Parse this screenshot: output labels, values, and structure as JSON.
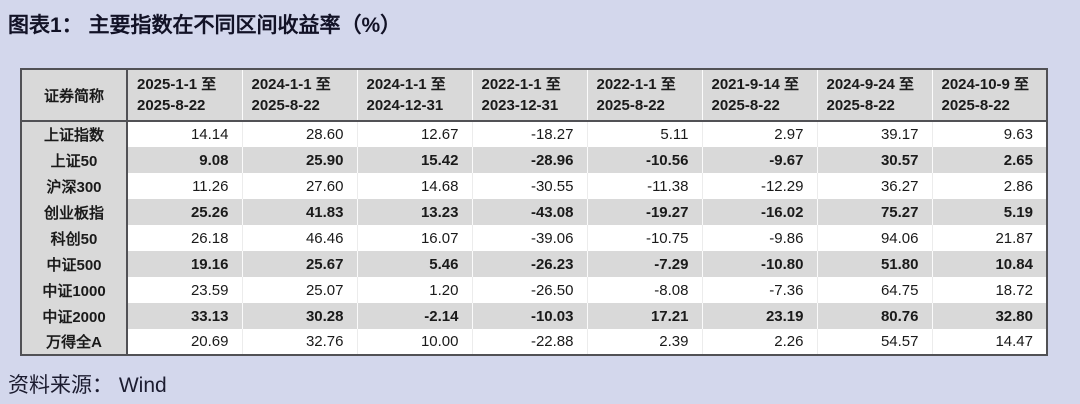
{
  "title": "图表1： 主要指数在不同区间收益率（%）",
  "source": "资料来源： Wind",
  "colors": {
    "page_background": "#d3d7ec",
    "stripe_and_header_gray": "#d9d9d9",
    "table_border_dark": "#515155",
    "text": "#1a1a1a"
  },
  "table": {
    "index_header": "证券简称",
    "columns": [
      {
        "line1": "2025-1-1 至",
        "line2": "2025-8-22"
      },
      {
        "line1": "2024-1-1 至",
        "line2": "2025-8-22"
      },
      {
        "line1": "2024-1-1 至",
        "line2": "2024-12-31"
      },
      {
        "line1": "2022-1-1 至",
        "line2": "2023-12-31"
      },
      {
        "line1": "2022-1-1 至",
        "line2": "2025-8-22"
      },
      {
        "line1": "2021-9-14 至",
        "line2": "2025-8-22"
      },
      {
        "line1": "2024-9-24 至",
        "line2": "2025-8-22"
      },
      {
        "line1": "2024-10-9 至",
        "line2": "2025-8-22"
      }
    ],
    "rows": [
      {
        "label": "上证指数",
        "values": [
          "14.14",
          "28.60",
          "12.67",
          "-18.27",
          "5.11",
          "2.97",
          "39.17",
          "9.63"
        ]
      },
      {
        "label": "上证50",
        "values": [
          "9.08",
          "25.90",
          "15.42",
          "-28.96",
          "-10.56",
          "-9.67",
          "30.57",
          "2.65"
        ]
      },
      {
        "label": "沪深300",
        "values": [
          "11.26",
          "27.60",
          "14.68",
          "-30.55",
          "-11.38",
          "-12.29",
          "36.27",
          "2.86"
        ]
      },
      {
        "label": "创业板指",
        "values": [
          "25.26",
          "41.83",
          "13.23",
          "-43.08",
          "-19.27",
          "-16.02",
          "75.27",
          "5.19"
        ]
      },
      {
        "label": "科创50",
        "values": [
          "26.18",
          "46.46",
          "16.07",
          "-39.06",
          "-10.75",
          "-9.86",
          "94.06",
          "21.87"
        ]
      },
      {
        "label": "中证500",
        "values": [
          "19.16",
          "25.67",
          "5.46",
          "-26.23",
          "-7.29",
          "-10.80",
          "51.80",
          "10.84"
        ]
      },
      {
        "label": "中证1000",
        "values": [
          "23.59",
          "25.07",
          "1.20",
          "-26.50",
          "-8.08",
          "-7.36",
          "64.75",
          "18.72"
        ]
      },
      {
        "label": "中证2000",
        "values": [
          "33.13",
          "30.28",
          "-2.14",
          "-10.03",
          "17.21",
          "23.19",
          "80.76",
          "32.80"
        ]
      },
      {
        "label": "万得全A",
        "values": [
          "20.69",
          "32.76",
          "10.00",
          "-22.88",
          "2.39",
          "2.26",
          "54.57",
          "14.47"
        ]
      }
    ]
  },
  "chart_data": {
    "type": "table",
    "title": "图表1： 主要指数在不同区间收益率（%）",
    "categories": [
      "上证指数",
      "上证50",
      "沪深300",
      "创业板指",
      "科创50",
      "中证500",
      "中证1000",
      "中证2000",
      "万得全A"
    ],
    "series": [
      {
        "name": "2025-1-1 至 2025-8-22",
        "values": [
          14.14,
          9.08,
          11.26,
          25.26,
          26.18,
          19.16,
          23.59,
          33.13,
          20.69
        ]
      },
      {
        "name": "2024-1-1 至 2025-8-22",
        "values": [
          28.6,
          25.9,
          27.6,
          41.83,
          46.46,
          25.67,
          25.07,
          30.28,
          32.76
        ]
      },
      {
        "name": "2024-1-1 至 2024-12-31",
        "values": [
          12.67,
          15.42,
          14.68,
          13.23,
          16.07,
          5.46,
          1.2,
          -2.14,
          10.0
        ]
      },
      {
        "name": "2022-1-1 至 2023-12-31",
        "values": [
          -18.27,
          -28.96,
          -30.55,
          -43.08,
          -39.06,
          -26.23,
          -26.5,
          -10.03,
          -22.88
        ]
      },
      {
        "name": "2022-1-1 至 2025-8-22",
        "values": [
          5.11,
          -10.56,
          -11.38,
          -19.27,
          -10.75,
          -7.29,
          -8.08,
          17.21,
          2.39
        ]
      },
      {
        "name": "2021-9-14 至 2025-8-22",
        "values": [
          2.97,
          -9.67,
          -12.29,
          -16.02,
          -9.86,
          -10.8,
          -7.36,
          23.19,
          2.26
        ]
      },
      {
        "name": "2024-9-24 至 2025-8-22",
        "values": [
          39.17,
          30.57,
          36.27,
          75.27,
          94.06,
          51.8,
          64.75,
          80.76,
          54.57
        ]
      },
      {
        "name": "2024-10-9 至 2025-8-22",
        "values": [
          9.63,
          2.65,
          2.86,
          5.19,
          21.87,
          10.84,
          18.72,
          32.8,
          14.47
        ]
      }
    ],
    "source_note": "资料来源： Wind"
  }
}
